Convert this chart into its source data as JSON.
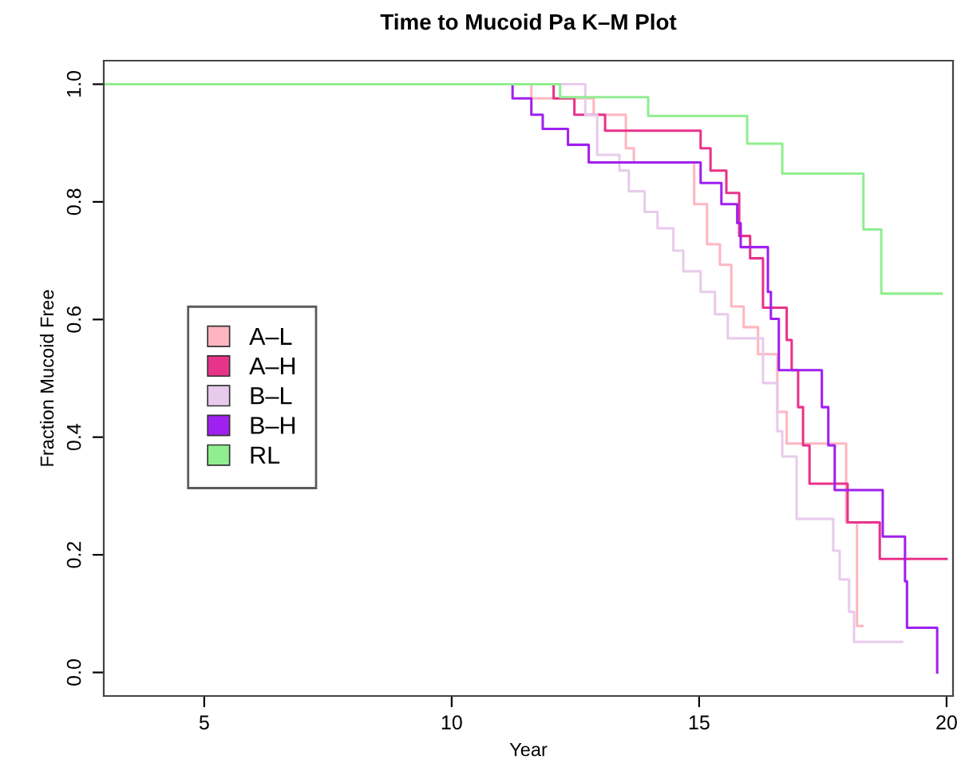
{
  "chart_data": {
    "type": "step",
    "title": "Time to Mucoid Pa K–M Plot",
    "xlabel": "Year",
    "ylabel": "Fraction Mucoid Free",
    "xlim": [
      2.97,
      20.13
    ],
    "ylim": [
      -0.04,
      1.04
    ],
    "xticks": [
      5,
      10,
      15,
      20
    ],
    "yticks": [
      {
        "value": 0,
        "label": "0.0"
      },
      {
        "value": 0.2,
        "label": "0.2"
      },
      {
        "value": 0.4,
        "label": "0.4"
      },
      {
        "value": 0.6,
        "label": "0.6"
      },
      {
        "value": 0.8,
        "label": "0.8"
      },
      {
        "value": 1,
        "label": "1.0"
      }
    ],
    "grid": false,
    "legend": "left",
    "line_style": "solid",
    "marker": "none",
    "series": [
      {
        "name": "A–L",
        "color": "#ffb6c1",
        "x": [
          3.0,
          11.61,
          12.87,
          13.52,
          13.68,
          14.9,
          15.16,
          15.42,
          15.65,
          15.9,
          16.19,
          16.58,
          16.77,
          17.97,
          18.19,
          18.3
        ],
        "values": [
          1.0,
          0.976,
          0.948,
          0.891,
          0.867,
          0.796,
          0.728,
          0.693,
          0.622,
          0.587,
          0.541,
          0.443,
          0.389,
          0.255,
          0.079,
          0.079
        ]
      },
      {
        "name": "A–H",
        "color": "#e8338a",
        "x": [
          3.0,
          12.06,
          12.48,
          13.1,
          15.03,
          15.23,
          15.55,
          15.81,
          16.03,
          16.29,
          16.77,
          16.87,
          17.0,
          17.1,
          17.23,
          18.0,
          18.65,
          20.0
        ],
        "values": [
          1.0,
          0.976,
          0.948,
          0.921,
          0.891,
          0.853,
          0.815,
          0.742,
          0.704,
          0.62,
          0.565,
          0.514,
          0.451,
          0.386,
          0.321,
          0.255,
          0.193,
          0.193
        ]
      },
      {
        "name": "B–L",
        "color": "#e8cbec",
        "x": [
          3.0,
          12.7,
          12.94,
          13.39,
          13.58,
          13.9,
          14.16,
          14.48,
          14.68,
          15.03,
          15.32,
          15.58,
          16.29,
          16.58,
          16.68,
          16.97,
          17.71,
          17.84,
          18.03,
          18.13,
          19.1
        ],
        "values": [
          1.0,
          0.948,
          0.88,
          0.853,
          0.818,
          0.783,
          0.755,
          0.717,
          0.682,
          0.647,
          0.609,
          0.568,
          0.492,
          0.41,
          0.367,
          0.261,
          0.207,
          0.158,
          0.103,
          0.052,
          0.052
        ]
      },
      {
        "name": "B–H",
        "color": "#a020f0",
        "x": [
          3.0,
          11.23,
          11.61,
          11.84,
          12.35,
          12.77,
          15.03,
          15.45,
          15.77,
          15.84,
          16.39,
          16.45,
          16.61,
          17.48,
          17.61,
          17.74,
          18.71,
          19.16,
          19.2,
          19.81
        ],
        "values": [
          1.0,
          0.976,
          0.948,
          0.924,
          0.897,
          0.867,
          0.832,
          0.796,
          0.764,
          0.723,
          0.647,
          0.601,
          0.514,
          0.451,
          0.386,
          0.31,
          0.231,
          0.155,
          0.076,
          0.0
        ]
      },
      {
        "name": "RL",
        "color": "#90ee90",
        "x": [
          3.0,
          12.19,
          13.97,
          15.97,
          16.68,
          18.32,
          18.68,
          19.9
        ],
        "values": [
          1.0,
          0.978,
          0.946,
          0.899,
          0.848,
          0.753,
          0.644,
          0.644
        ]
      }
    ]
  }
}
